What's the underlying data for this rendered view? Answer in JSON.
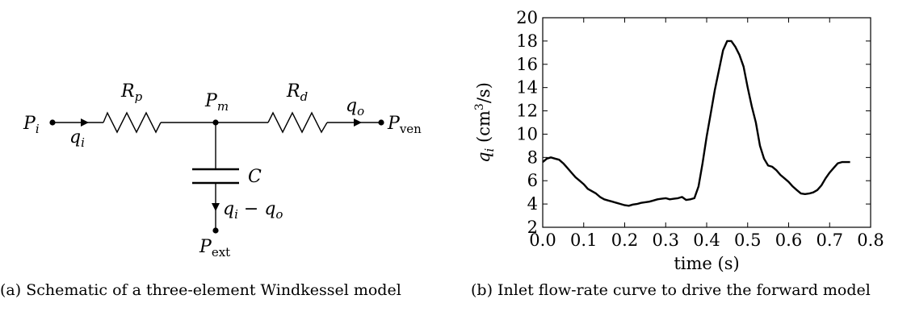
{
  "schematic": {
    "labels": {
      "p_in": "P",
      "p_in_sub": "i",
      "q_in": "q",
      "q_in_sub": "i",
      "r_proximal": "R",
      "r_proximal_sub": "p",
      "p_mid": "P",
      "p_mid_sub": "m",
      "r_distal": "R",
      "r_distal_sub": "d",
      "q_out": "q",
      "q_out_sub": "o",
      "p_venous": "P",
      "p_venous_sub": "ven",
      "capacitor": "C",
      "q_cap_a": "q",
      "q_cap_a_sub": "i",
      "q_cap_minus": " − ",
      "q_cap_b": "q",
      "q_cap_b_sub": "o",
      "p_external": "P",
      "p_external_sub": "ext"
    }
  },
  "captions": {
    "a": "(a) Schematic of a three-element Windkessel model",
    "b": "(b) Inlet flow-rate curve to drive the forward model"
  },
  "chart_data": {
    "type": "line",
    "title": "",
    "xlabel": "time (s)",
    "ylabel_symbol": "q",
    "ylabel_sub": "i",
    "ylabel_units_open": "(cm",
    "ylabel_units_exp": "3",
    "ylabel_units_close": "/s)",
    "xlim": [
      0.0,
      0.8
    ],
    "ylim": [
      2,
      20
    ],
    "xticks": [
      "0.0",
      "0.1",
      "0.2",
      "0.3",
      "0.4",
      "0.5",
      "0.6",
      "0.7",
      "0.8"
    ],
    "yticks": [
      "2",
      "4",
      "6",
      "8",
      "10",
      "12",
      "14",
      "16",
      "18",
      "20"
    ],
    "grid": false,
    "series": [
      {
        "x": [
          0.0,
          0.01,
          0.02,
          0.03,
          0.04,
          0.05,
          0.06,
          0.07,
          0.08,
          0.09,
          0.1,
          0.11,
          0.12,
          0.13,
          0.14,
          0.15,
          0.16,
          0.17,
          0.18,
          0.19,
          0.2,
          0.21,
          0.22,
          0.23,
          0.24,
          0.25,
          0.26,
          0.27,
          0.28,
          0.29,
          0.3,
          0.31,
          0.32,
          0.33,
          0.34,
          0.35,
          0.36,
          0.37,
          0.38,
          0.39,
          0.4,
          0.41,
          0.42,
          0.43,
          0.44,
          0.45,
          0.46,
          0.47,
          0.48,
          0.49,
          0.5,
          0.51,
          0.52,
          0.53,
          0.54,
          0.55,
          0.56,
          0.57,
          0.58,
          0.59,
          0.6,
          0.61,
          0.62,
          0.63,
          0.64,
          0.65,
          0.66,
          0.67,
          0.68,
          0.69,
          0.7,
          0.71,
          0.72,
          0.73,
          0.74,
          0.75
        ],
        "y": [
          7.6,
          7.9,
          8.0,
          7.9,
          7.8,
          7.5,
          7.1,
          6.7,
          6.3,
          6.0,
          5.7,
          5.3,
          5.1,
          4.9,
          4.6,
          4.4,
          4.3,
          4.2,
          4.1,
          4.0,
          3.9,
          3.85,
          3.95,
          4.0,
          4.1,
          4.15,
          4.2,
          4.3,
          4.4,
          4.45,
          4.5,
          4.4,
          4.45,
          4.5,
          4.6,
          4.35,
          4.4,
          4.5,
          5.5,
          7.5,
          9.8,
          11.8,
          13.8,
          15.5,
          17.2,
          18.0,
          18.0,
          17.5,
          16.8,
          15.8,
          14.0,
          12.4,
          11.0,
          9.0,
          7.9,
          7.3,
          7.2,
          6.9,
          6.5,
          6.2,
          5.9,
          5.5,
          5.2,
          4.9,
          4.85,
          4.9,
          5.0,
          5.2,
          5.6,
          6.2,
          6.7,
          7.1,
          7.5,
          7.6,
          7.6,
          7.6
        ]
      }
    ]
  }
}
